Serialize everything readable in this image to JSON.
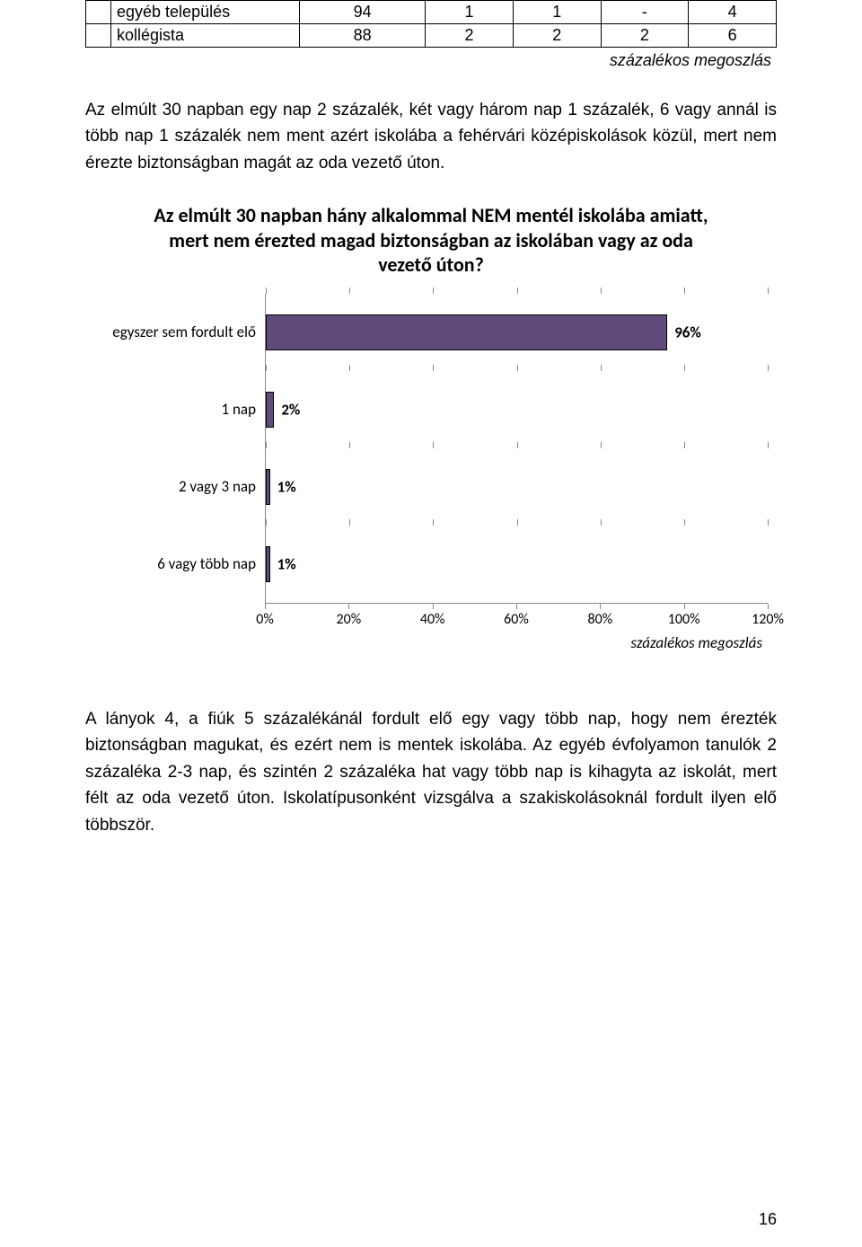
{
  "table": {
    "rows": [
      {
        "label": "egyéb település",
        "c1": "94",
        "c2": "1",
        "c3": "1",
        "c4": "-",
        "c5": "4"
      },
      {
        "label": "kollégista",
        "c1": "88",
        "c2": "2",
        "c3": "2",
        "c4": "2",
        "c5": "6"
      }
    ],
    "caption": "százalékos megoszlás"
  },
  "para1": "Az elmúlt 30 napban egy nap 2 százalék, két vagy három nap 1 százalék, 6 vagy annál is több nap 1 százalék nem ment azért iskolába a fehérvári középiskolások közül, mert nem érezte biztonságban magát az oda vezető úton.",
  "chart": {
    "title": "Az elmúlt 30 napban hány alkalommal NEM mentél iskolába amiatt, mert nem érezted magad biztonságban az iskolában vagy az oda vezető úton?",
    "bar_color": "#604a7b",
    "bar_border": "#000000",
    "grid_color": "#888888",
    "bg_color": "#ffffff",
    "xmax": 120,
    "xticks": [
      0,
      20,
      40,
      60,
      80,
      100,
      120
    ],
    "xtick_labels": [
      "0%",
      "20%",
      "40%",
      "60%",
      "80%",
      "100%",
      "120%"
    ],
    "categories": [
      {
        "label": "egyszer sem fordult elő",
        "value": 96,
        "value_label": "96%"
      },
      {
        "label": "1 nap",
        "value": 2,
        "value_label": "2%"
      },
      {
        "label": "2 vagy 3 nap",
        "value": 1,
        "value_label": "1%"
      },
      {
        "label": "6 vagy több nap",
        "value": 1,
        "value_label": "1%"
      }
    ],
    "axis_caption": "százalékos megoszlás"
  },
  "para2": "A lányok 4, a fiúk 5 százalékánál fordult elő egy vagy több nap, hogy nem érezték biztonságban magukat, és ezért nem is mentek iskolába. Az egyéb évfolyamon tanulók 2 százaléka 2-3 nap, és szintén 2 százaléka hat vagy több nap is kihagyta az iskolát, mert félt az oda vezető úton. Iskolatípusonként vizsgálva a szakiskolásoknál fordult ilyen elő többször.",
  "page_number": "16"
}
